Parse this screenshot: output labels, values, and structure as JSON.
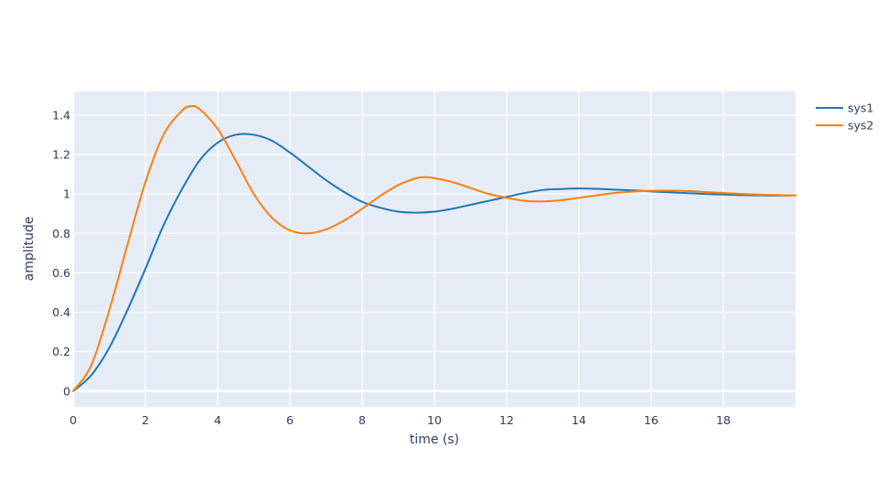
{
  "chart_data": {
    "type": "line",
    "title": "",
    "xlabel": "time (s)",
    "ylabel": "amplitude",
    "xlim": [
      0,
      20
    ],
    "ylim": [
      -0.08,
      1.52
    ],
    "xticks": [
      0,
      2,
      4,
      6,
      8,
      10,
      12,
      14,
      16,
      18
    ],
    "yticks": [
      0,
      0.2,
      0.4,
      0.6,
      0.8,
      1,
      1.2,
      1.4
    ],
    "xtick_labels": [
      "0",
      "2",
      "4",
      "6",
      "8",
      "10",
      "12",
      "14",
      "16",
      "18"
    ],
    "ytick_labels": [
      "0",
      "0.2",
      "0.4",
      "0.6",
      "0.8",
      "1",
      "1.2",
      "1.4"
    ],
    "grid": true,
    "legend_position": "top-right",
    "background": "#e5ecf6",
    "series": [
      {
        "name": "sys1",
        "color": "#1f77b4",
        "x": [
          0,
          0.5,
          1,
          1.5,
          2,
          2.5,
          3,
          3.5,
          4,
          4.5,
          5,
          5.5,
          6,
          6.5,
          7,
          7.5,
          8,
          8.5,
          9,
          9.5,
          10,
          10.5,
          11,
          11.5,
          12,
          12.5,
          13,
          13.5,
          14,
          14.5,
          15,
          15.5,
          16,
          16.5,
          17,
          17.5,
          18,
          18.5,
          19,
          19.5,
          20
        ],
        "values": [
          0,
          0.08,
          0.22,
          0.41,
          0.62,
          0.84,
          1.02,
          1.17,
          1.26,
          1.3,
          1.3,
          1.27,
          1.21,
          1.14,
          1.07,
          1.01,
          0.96,
          0.93,
          0.91,
          0.905,
          0.91,
          0.925,
          0.945,
          0.965,
          0.985,
          1.005,
          1.02,
          1.025,
          1.028,
          1.026,
          1.022,
          1.018,
          1.013,
          1.008,
          1.004,
          1.0,
          0.997,
          0.994,
          0.993,
          0.992,
          0.993
        ]
      },
      {
        "name": "sys2",
        "color": "#ff7f0e",
        "x": [
          0,
          0.5,
          1,
          1.5,
          2,
          2.5,
          3,
          3.25,
          3.5,
          4,
          4.5,
          5,
          5.5,
          6,
          6.5,
          7,
          7.5,
          8,
          8.5,
          9,
          9.5,
          9.75,
          10,
          10.5,
          11,
          11.5,
          12,
          12.5,
          13,
          13.5,
          14,
          14.5,
          15,
          15.5,
          16,
          16.5,
          17,
          17.5,
          18,
          18.5,
          19,
          19.5,
          20
        ],
        "values": [
          0,
          0.13,
          0.41,
          0.74,
          1.06,
          1.3,
          1.42,
          1.445,
          1.43,
          1.33,
          1.17,
          1.0,
          0.88,
          0.815,
          0.8,
          0.82,
          0.865,
          0.925,
          0.99,
          1.045,
          1.08,
          1.085,
          1.08,
          1.06,
          1.03,
          1.0,
          0.98,
          0.965,
          0.962,
          0.968,
          0.98,
          0.993,
          1.005,
          1.012,
          1.016,
          1.017,
          1.015,
          1.01,
          1.005,
          1.0,
          0.997,
          0.994,
          0.993
        ]
      }
    ]
  }
}
